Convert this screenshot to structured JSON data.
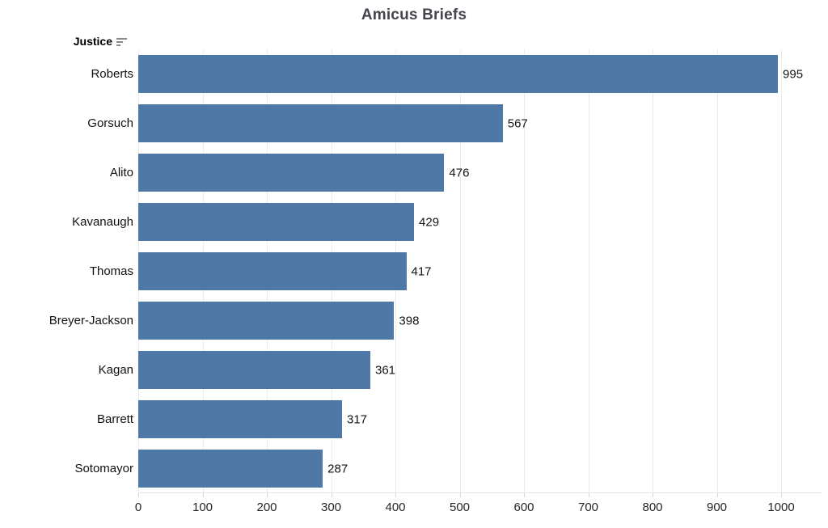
{
  "title": "Amicus Briefs",
  "row_header": {
    "label": "Justice",
    "sort_icon": "sort-descending-icon",
    "sort_order": "descending"
  },
  "colors": {
    "bar": "#4e79a7",
    "gridline": "#ececec",
    "axis_line": "#e4e4e4",
    "title_text": "#44444c"
  },
  "chart_data": {
    "type": "bar",
    "orientation": "horizontal",
    "title": "Amicus Briefs",
    "categories": [
      "Roberts",
      "Gorsuch",
      "Alito",
      "Kavanaugh",
      "Thomas",
      "Breyer-Jackson",
      "Kagan",
      "Barrett",
      "Sotomayor"
    ],
    "values": [
      995,
      567,
      476,
      429,
      417,
      398,
      361,
      317,
      287
    ],
    "category_field": "Justice",
    "xlabel": "",
    "ylabel": "Justice",
    "xlim": [
      0,
      1000
    ],
    "x_ticks": [
      0,
      100,
      200,
      300,
      400,
      500,
      600,
      700,
      800,
      900,
      1000
    ],
    "grid": true,
    "value_labels_shown": true,
    "legend": "none",
    "bar_color": "#4e79a7"
  }
}
